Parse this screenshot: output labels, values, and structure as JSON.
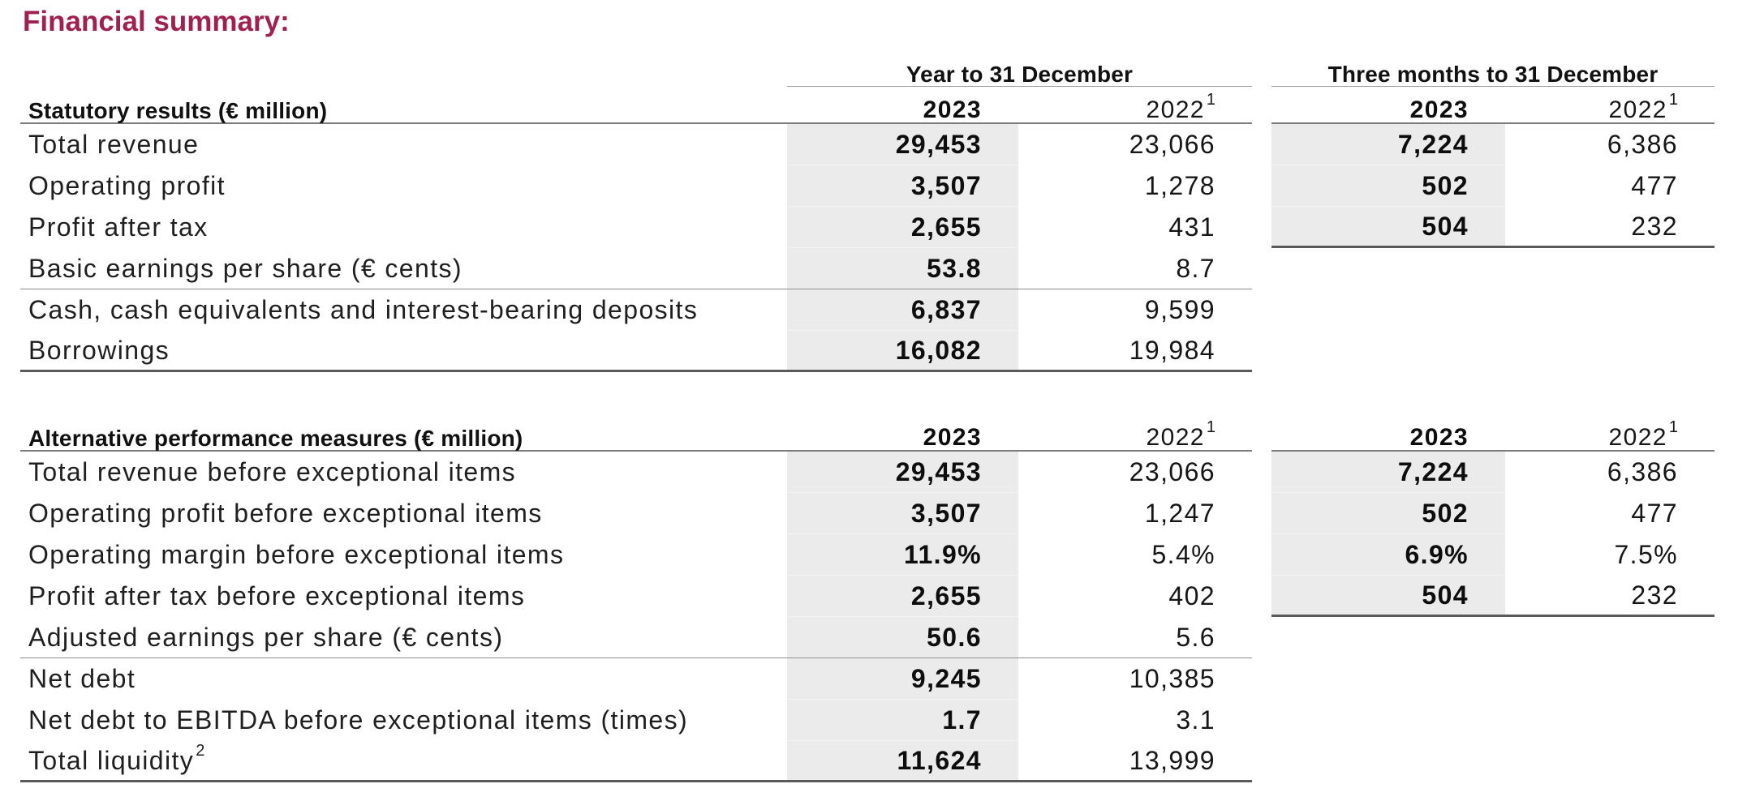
{
  "title": "Financial summary:",
  "headers": {
    "year_group": "Year to 31 December",
    "quarter_group": "Three months to 31 December",
    "y2023": "2023",
    "y2022": "2022",
    "sup1": "1"
  },
  "colors": {
    "title": "#9f2151",
    "shaded_column": "#ebebeb"
  },
  "table1": {
    "section_label": "Statutory results (€ million)",
    "rows": [
      {
        "label": "Total revenue",
        "y2023": "29,453",
        "y2022": "23,066",
        "q2023": "7,224",
        "q2022": "6,386"
      },
      {
        "label": "Operating profit",
        "y2023": "3,507",
        "y2022": "1,278",
        "q2023": "502",
        "q2022": "477"
      },
      {
        "label": "Profit after tax",
        "y2023": "2,655",
        "y2022": "431",
        "q2023": "504",
        "q2022": "232"
      },
      {
        "label": "Basic earnings per share (€ cents)",
        "y2023": "53.8",
        "y2022": "8.7"
      },
      {
        "label": "Cash, cash equivalents and interest-bearing deposits",
        "y2023": "6,837",
        "y2022": "9,599"
      },
      {
        "label": "Borrowings",
        "y2023": "16,082",
        "y2022": "19,984"
      }
    ]
  },
  "table2": {
    "section_label": "Alternative performance measures (€ million)",
    "rows": [
      {
        "label": "Total revenue before exceptional items",
        "y2023": "29,453",
        "y2022": "23,066",
        "q2023": "7,224",
        "q2022": "6,386"
      },
      {
        "label": "Operating profit before exceptional items",
        "y2023": "3,507",
        "y2022": "1,247",
        "q2023": "502",
        "q2022": "477"
      },
      {
        "label": "Operating margin before exceptional items",
        "y2023": "11.9%",
        "y2022": "5.4%",
        "q2023": "6.9%",
        "q2022": "7.5%"
      },
      {
        "label": "Profit after tax before exceptional items",
        "y2023": "2,655",
        "y2022": "402",
        "q2023": "504",
        "q2022": "232"
      },
      {
        "label": "Adjusted earnings per share (€ cents)",
        "y2023": "50.6",
        "y2022": "5.6"
      },
      {
        "label": "Net debt",
        "y2023": "9,245",
        "y2022": "10,385"
      },
      {
        "label": "Net debt to EBITDA before exceptional items (times)",
        "y2023": "1.7",
        "y2022": "3.1"
      },
      {
        "label": "Total liquidity",
        "label_sup": "2",
        "y2023": "11,624",
        "y2022": "13,999"
      }
    ]
  }
}
